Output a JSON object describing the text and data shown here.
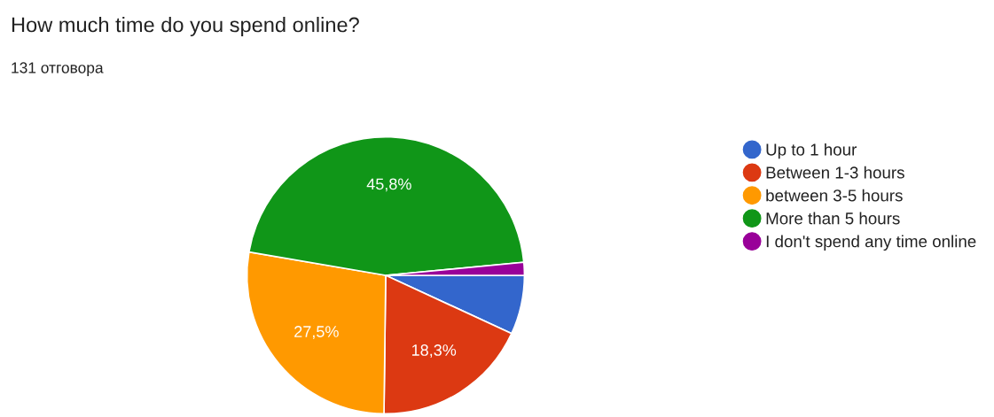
{
  "chart_data": {
    "type": "pie",
    "title": "How much time do you spend online?",
    "subtitle": "131 отговора",
    "categories": [
      "Up to 1 hour",
      "Between 1-3 hours",
      "between 3-5 hours",
      "More than 5 hours",
      "I don't spend any time online"
    ],
    "values": [
      6.9,
      18.3,
      27.5,
      45.8,
      1.5
    ],
    "value_labels": [
      null,
      "18,3%",
      "27,5%",
      "45,8%",
      null
    ],
    "colors": [
      "#3366cc",
      "#dc3912",
      "#ff9900",
      "#109618",
      "#990099"
    ],
    "legend": "right"
  }
}
